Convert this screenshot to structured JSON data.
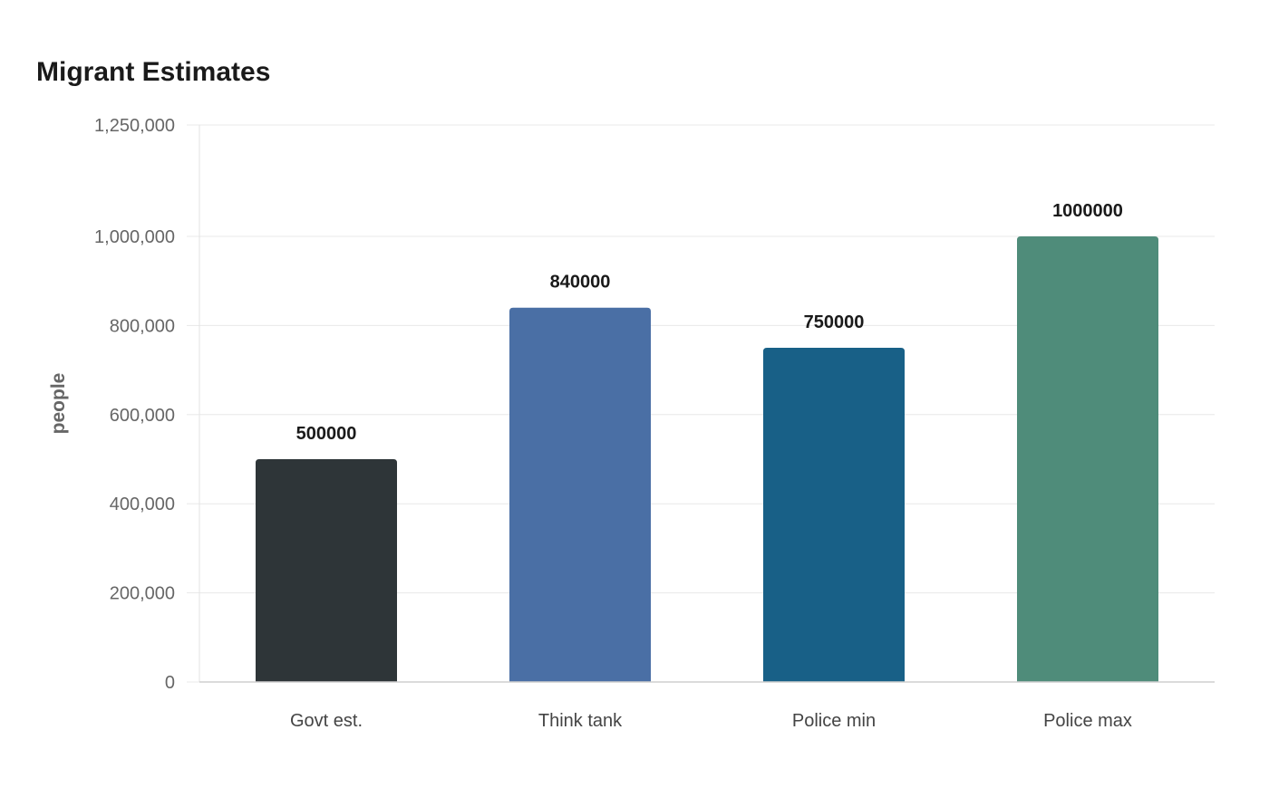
{
  "chart_data": {
    "type": "bar",
    "title": "Migrant Estimates",
    "xlabel": "",
    "ylabel": "people",
    "categories": [
      "Govt est.",
      "Think tank",
      "Police min",
      "Police max"
    ],
    "values": [
      500000,
      840000,
      750000,
      1000000
    ],
    "data_labels": [
      "500000",
      "840000",
      "750000",
      "1000000"
    ],
    "colors": [
      "#2e3538",
      "#4a6fa5",
      "#186087",
      "#4f8c7a"
    ],
    "ylim": [
      0,
      1250000
    ],
    "y_ticks": [
      0,
      200000,
      400000,
      600000,
      800000,
      1000000,
      1250000
    ],
    "y_tick_labels": [
      "0",
      "200,000",
      "400,000",
      "600,000",
      "800,000",
      "1,000,000",
      "1,250,000"
    ],
    "grid": true,
    "legend": "none"
  }
}
